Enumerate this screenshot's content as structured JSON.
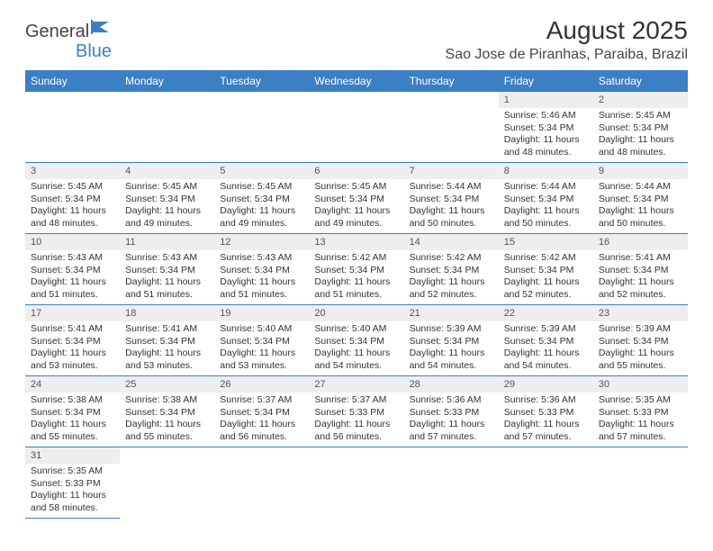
{
  "logo": {
    "text1": "General",
    "text2": "Blue"
  },
  "title": "August 2025",
  "location": "Sao Jose de Piranhas, Paraiba, Brazil",
  "colors": {
    "header_bg": "#3b7fc4",
    "header_fg": "#ffffff",
    "daynum_bg": "#eeeeee",
    "border": "#3b7fc4",
    "text": "#333333"
  },
  "day_headers": [
    "Sunday",
    "Monday",
    "Tuesday",
    "Wednesday",
    "Thursday",
    "Friday",
    "Saturday"
  ],
  "weeks": [
    [
      {
        "num": "",
        "sunrise": "",
        "sunset": "",
        "day_h": "",
        "day_m": ""
      },
      {
        "num": "",
        "sunrise": "",
        "sunset": "",
        "day_h": "",
        "day_m": ""
      },
      {
        "num": "",
        "sunrise": "",
        "sunset": "",
        "day_h": "",
        "day_m": ""
      },
      {
        "num": "",
        "sunrise": "",
        "sunset": "",
        "day_h": "",
        "day_m": ""
      },
      {
        "num": "",
        "sunrise": "",
        "sunset": "",
        "day_h": "",
        "day_m": ""
      },
      {
        "num": "1",
        "sunrise": "5:46 AM",
        "sunset": "5:34 PM",
        "day_h": "11",
        "day_m": "48"
      },
      {
        "num": "2",
        "sunrise": "5:45 AM",
        "sunset": "5:34 PM",
        "day_h": "11",
        "day_m": "48"
      }
    ],
    [
      {
        "num": "3",
        "sunrise": "5:45 AM",
        "sunset": "5:34 PM",
        "day_h": "11",
        "day_m": "48"
      },
      {
        "num": "4",
        "sunrise": "5:45 AM",
        "sunset": "5:34 PM",
        "day_h": "11",
        "day_m": "49"
      },
      {
        "num": "5",
        "sunrise": "5:45 AM",
        "sunset": "5:34 PM",
        "day_h": "11",
        "day_m": "49"
      },
      {
        "num": "6",
        "sunrise": "5:45 AM",
        "sunset": "5:34 PM",
        "day_h": "11",
        "day_m": "49"
      },
      {
        "num": "7",
        "sunrise": "5:44 AM",
        "sunset": "5:34 PM",
        "day_h": "11",
        "day_m": "50"
      },
      {
        "num": "8",
        "sunrise": "5:44 AM",
        "sunset": "5:34 PM",
        "day_h": "11",
        "day_m": "50"
      },
      {
        "num": "9",
        "sunrise": "5:44 AM",
        "sunset": "5:34 PM",
        "day_h": "11",
        "day_m": "50"
      }
    ],
    [
      {
        "num": "10",
        "sunrise": "5:43 AM",
        "sunset": "5:34 PM",
        "day_h": "11",
        "day_m": "51"
      },
      {
        "num": "11",
        "sunrise": "5:43 AM",
        "sunset": "5:34 PM",
        "day_h": "11",
        "day_m": "51"
      },
      {
        "num": "12",
        "sunrise": "5:43 AM",
        "sunset": "5:34 PM",
        "day_h": "11",
        "day_m": "51"
      },
      {
        "num": "13",
        "sunrise": "5:42 AM",
        "sunset": "5:34 PM",
        "day_h": "11",
        "day_m": "51"
      },
      {
        "num": "14",
        "sunrise": "5:42 AM",
        "sunset": "5:34 PM",
        "day_h": "11",
        "day_m": "52"
      },
      {
        "num": "15",
        "sunrise": "5:42 AM",
        "sunset": "5:34 PM",
        "day_h": "11",
        "day_m": "52"
      },
      {
        "num": "16",
        "sunrise": "5:41 AM",
        "sunset": "5:34 PM",
        "day_h": "11",
        "day_m": "52"
      }
    ],
    [
      {
        "num": "17",
        "sunrise": "5:41 AM",
        "sunset": "5:34 PM",
        "day_h": "11",
        "day_m": "53"
      },
      {
        "num": "18",
        "sunrise": "5:41 AM",
        "sunset": "5:34 PM",
        "day_h": "11",
        "day_m": "53"
      },
      {
        "num": "19",
        "sunrise": "5:40 AM",
        "sunset": "5:34 PM",
        "day_h": "11",
        "day_m": "53"
      },
      {
        "num": "20",
        "sunrise": "5:40 AM",
        "sunset": "5:34 PM",
        "day_h": "11",
        "day_m": "54"
      },
      {
        "num": "21",
        "sunrise": "5:39 AM",
        "sunset": "5:34 PM",
        "day_h": "11",
        "day_m": "54"
      },
      {
        "num": "22",
        "sunrise": "5:39 AM",
        "sunset": "5:34 PM",
        "day_h": "11",
        "day_m": "54"
      },
      {
        "num": "23",
        "sunrise": "5:39 AM",
        "sunset": "5:34 PM",
        "day_h": "11",
        "day_m": "55"
      }
    ],
    [
      {
        "num": "24",
        "sunrise": "5:38 AM",
        "sunset": "5:34 PM",
        "day_h": "11",
        "day_m": "55"
      },
      {
        "num": "25",
        "sunrise": "5:38 AM",
        "sunset": "5:34 PM",
        "day_h": "11",
        "day_m": "55"
      },
      {
        "num": "26",
        "sunrise": "5:37 AM",
        "sunset": "5:34 PM",
        "day_h": "11",
        "day_m": "56"
      },
      {
        "num": "27",
        "sunrise": "5:37 AM",
        "sunset": "5:33 PM",
        "day_h": "11",
        "day_m": "56"
      },
      {
        "num": "28",
        "sunrise": "5:36 AM",
        "sunset": "5:33 PM",
        "day_h": "11",
        "day_m": "57"
      },
      {
        "num": "29",
        "sunrise": "5:36 AM",
        "sunset": "5:33 PM",
        "day_h": "11",
        "day_m": "57"
      },
      {
        "num": "30",
        "sunrise": "5:35 AM",
        "sunset": "5:33 PM",
        "day_h": "11",
        "day_m": "57"
      }
    ],
    [
      {
        "num": "31",
        "sunrise": "5:35 AM",
        "sunset": "5:33 PM",
        "day_h": "11",
        "day_m": "58"
      },
      {
        "num": "",
        "sunrise": "",
        "sunset": "",
        "day_h": "",
        "day_m": ""
      },
      {
        "num": "",
        "sunrise": "",
        "sunset": "",
        "day_h": "",
        "day_m": ""
      },
      {
        "num": "",
        "sunrise": "",
        "sunset": "",
        "day_h": "",
        "day_m": ""
      },
      {
        "num": "",
        "sunrise": "",
        "sunset": "",
        "day_h": "",
        "day_m": ""
      },
      {
        "num": "",
        "sunrise": "",
        "sunset": "",
        "day_h": "",
        "day_m": ""
      },
      {
        "num": "",
        "sunrise": "",
        "sunset": "",
        "day_h": "",
        "day_m": ""
      }
    ]
  ]
}
